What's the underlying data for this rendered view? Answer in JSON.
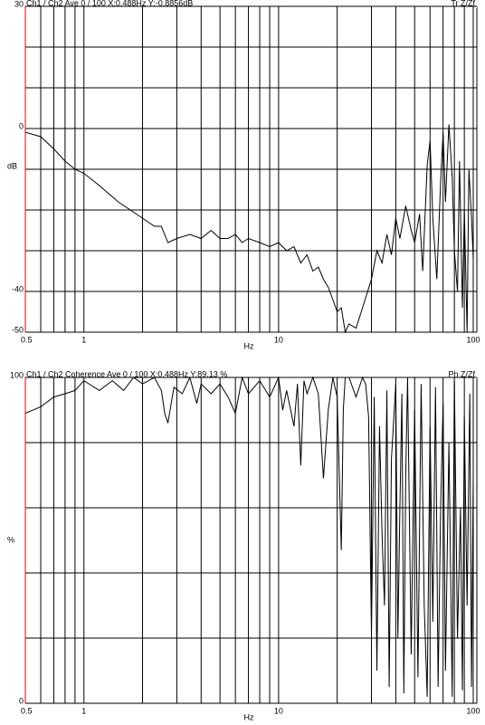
{
  "chart_data": [
    {
      "type": "line",
      "title": "Ch1 / Ch2  Ave 0 / 100  X:0.488Hz  Y:-0.8856dB",
      "mode": "Tr Z/Zf",
      "xlabel": "Hz",
      "ylabel": "dB",
      "xscale": "log",
      "xlim": [
        0.5,
        100
      ],
      "xticks": [
        0.5,
        1,
        10,
        100
      ],
      "xgrid": [
        0.6,
        0.7,
        0.8,
        0.9,
        2,
        3,
        4,
        5,
        6,
        7,
        8,
        9,
        20,
        30,
        40,
        50,
        60,
        70,
        80,
        90
      ],
      "ylim": [
        -50,
        30
      ],
      "yticks": [
        30,
        0,
        -40,
        -50
      ],
      "ygrid": [
        20,
        10,
        -10,
        -20,
        -30
      ],
      "series": [
        {
          "color": "#000000",
          "x": [
            0.5,
            0.6,
            0.7,
            0.8,
            0.9,
            1,
            1.2,
            1.5,
            2,
            2.3,
            2.5,
            2.7,
            3,
            3.5,
            4,
            4.5,
            5,
            5.5,
            6,
            6.5,
            7,
            8,
            9,
            10,
            11,
            12,
            13,
            14,
            15,
            16,
            17,
            18,
            19,
            20,
            21,
            22,
            23,
            25,
            27,
            30,
            32,
            34,
            36,
            38,
            40,
            42,
            45,
            48,
            50,
            53,
            55,
            58,
            60,
            62,
            65,
            68,
            70,
            72,
            75,
            78,
            80,
            83,
            85,
            88,
            90,
            93,
            95,
            98,
            100
          ],
          "values": [
            -0.9,
            -2,
            -5,
            -8,
            -10,
            -11,
            -14,
            -18,
            -22,
            -24,
            -24,
            -28,
            -27,
            -26,
            -27,
            -25,
            -27,
            -27,
            -26,
            -28,
            -27,
            -28,
            -29,
            -28,
            -30,
            -29,
            -33,
            -31,
            -35,
            -34,
            -37,
            -39,
            -42,
            -45,
            -44,
            -50,
            -48,
            -49,
            -44,
            -37,
            -30,
            -33,
            -26,
            -31,
            -22,
            -27,
            -19,
            -25,
            -28,
            -21,
            -35,
            -9,
            -3,
            -22,
            -37,
            -13,
            -1,
            -18,
            1,
            -12,
            -30,
            -40,
            -8,
            -44,
            -20,
            -50,
            -10,
            -22,
            -32
          ]
        }
      ]
    },
    {
      "type": "line",
      "title": "Ch1 / Ch2  Coherence Ave 0 / 100  X:0.488Hz  Y:89.13 %",
      "mode": "Ph Z/Zf",
      "xlabel": "Hz",
      "ylabel": "%",
      "xscale": "log",
      "xlim": [
        0.5,
        100
      ],
      "xticks": [
        0.5,
        1,
        10,
        100
      ],
      "xgrid": [
        0.6,
        0.7,
        0.8,
        0.9,
        2,
        3,
        4,
        5,
        6,
        7,
        8,
        9,
        20,
        30,
        40,
        50,
        60,
        70,
        80,
        90
      ],
      "ylim": [
        0,
        100
      ],
      "yticks": [
        100,
        0
      ],
      "ygrid": [
        80,
        60,
        40,
        20
      ],
      "series": [
        {
          "color": "#000000",
          "x": [
            0.5,
            0.6,
            0.7,
            0.8,
            0.9,
            1,
            1.2,
            1.4,
            1.6,
            1.8,
            2,
            2.3,
            2.5,
            2.6,
            2.7,
            2.9,
            3.2,
            3.5,
            3.8,
            4,
            4.5,
            5,
            5.5,
            6,
            6.5,
            7,
            8,
            9,
            10,
            10.5,
            11,
            12,
            12.5,
            13,
            13.5,
            14,
            15,
            16,
            16.5,
            17,
            18,
            19,
            20,
            21,
            21.5,
            22,
            23,
            25,
            27,
            28,
            29,
            30,
            31,
            32,
            33,
            34,
            35,
            36,
            37,
            38,
            40,
            41,
            42,
            43,
            44,
            45,
            46,
            48,
            50,
            52,
            54,
            56,
            58,
            60,
            62,
            64,
            66,
            68,
            70,
            72,
            75,
            78,
            80,
            83,
            86,
            88,
            90,
            93,
            96,
            98,
            100
          ],
          "values": [
            89,
            91,
            94,
            95,
            96,
            99,
            96,
            99,
            96,
            100,
            98,
            100,
            96,
            89,
            86,
            97,
            95,
            100,
            92,
            98,
            95,
            98,
            94,
            89,
            100,
            95,
            99,
            94,
            100,
            90,
            96,
            85,
            98,
            73,
            99,
            95,
            100,
            95,
            82,
            69,
            90,
            100,
            94,
            47,
            90,
            100,
            100,
            94,
            100,
            98,
            88,
            21,
            94,
            10,
            85,
            52,
            30,
            96,
            5,
            75,
            98,
            20,
            60,
            95,
            3,
            70,
            100,
            15,
            90,
            8,
            98,
            30,
            2,
            85,
            25,
            97,
            5,
            60,
            92,
            10,
            80,
            2,
            99,
            20,
            60,
            4,
            88,
            30,
            95,
            5,
            70
          ]
        }
      ]
    }
  ]
}
